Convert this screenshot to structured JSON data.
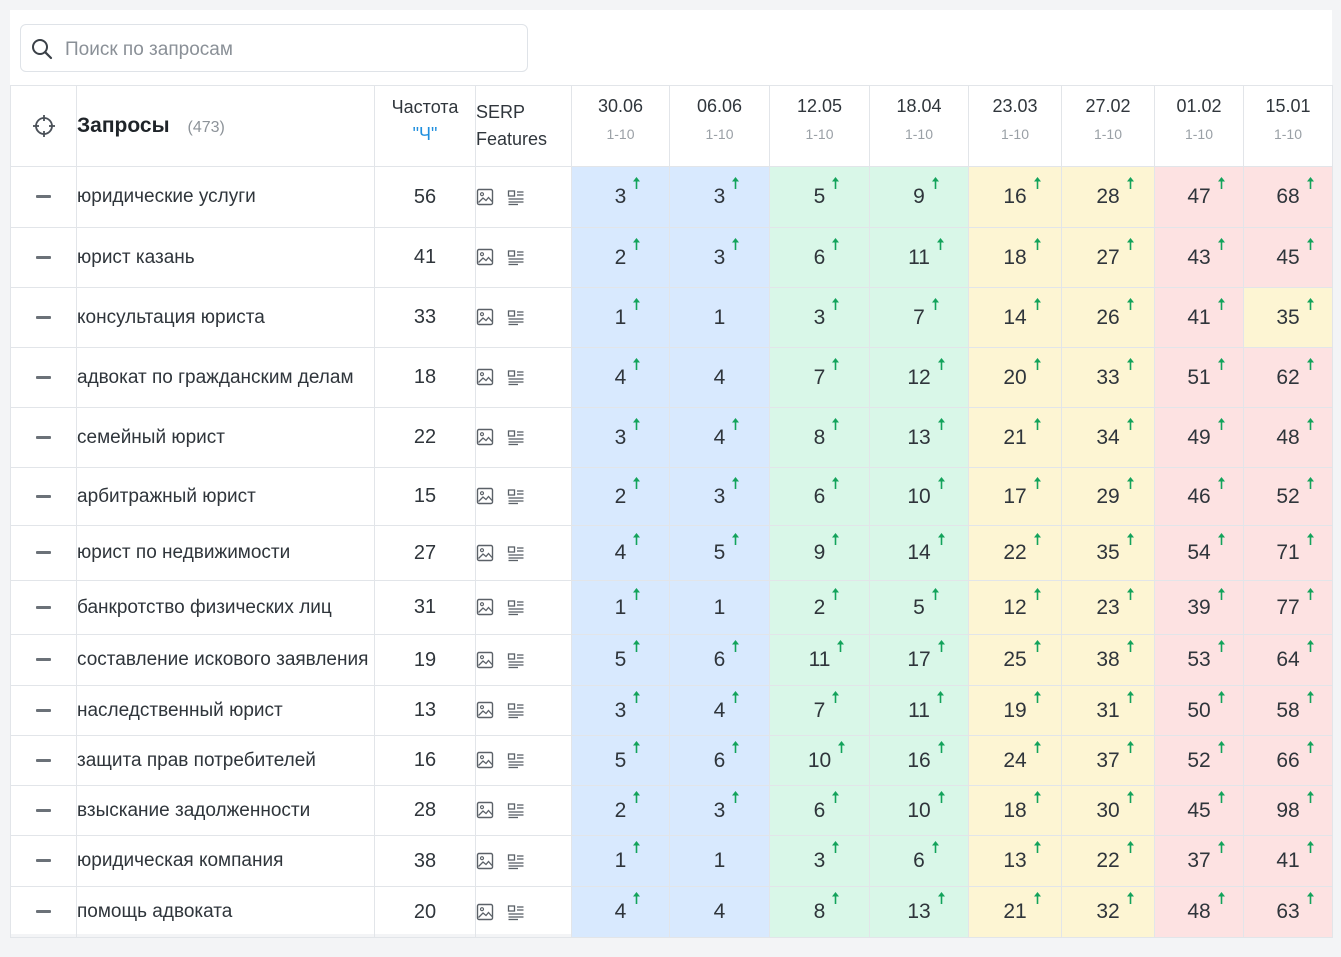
{
  "search": {
    "placeholder": "Поиск по запросам",
    "value": ""
  },
  "header": {
    "queries_title": "Запросы",
    "queries_count": "(473)",
    "freq_title": "Частота",
    "freq_sub": "\"Ч\"",
    "serp_line1": "SERP",
    "serp_line2": "Features"
  },
  "dates": [
    {
      "date": "30.06",
      "range": "1-10"
    },
    {
      "date": "06.06",
      "range": "1-10"
    },
    {
      "date": "12.05",
      "range": "1-10"
    },
    {
      "date": "18.04",
      "range": "1-10"
    },
    {
      "date": "23.03",
      "range": "1-10"
    },
    {
      "date": "27.02",
      "range": "1-10"
    },
    {
      "date": "01.02",
      "range": "1-10"
    },
    {
      "date": "15.01",
      "range": "1-10"
    }
  ],
  "colors": {
    "blue": "#d8e9fe",
    "green": "#d9f7e8",
    "yellow": "#fdf5d3",
    "red": "#fde2e2",
    "arrow_up": "#13a35b",
    "link": "#1f8fde"
  },
  "rows": [
    {
      "query": "юридические услуги",
      "freq": "56",
      "pos": [
        {
          "v": "3",
          "up": true,
          "c": "blue"
        },
        {
          "v": "3",
          "up": true,
          "c": "blue"
        },
        {
          "v": "5",
          "up": true,
          "c": "green"
        },
        {
          "v": "9",
          "up": true,
          "c": "green"
        },
        {
          "v": "16",
          "up": true,
          "c": "yellow"
        },
        {
          "v": "28",
          "up": true,
          "c": "yellow"
        },
        {
          "v": "47",
          "up": true,
          "c": "red"
        },
        {
          "v": "68",
          "up": true,
          "c": "red"
        }
      ]
    },
    {
      "query": "юрист казань",
      "freq": "41",
      "pos": [
        {
          "v": "2",
          "up": true,
          "c": "blue"
        },
        {
          "v": "3",
          "up": true,
          "c": "blue"
        },
        {
          "v": "6",
          "up": true,
          "c": "green"
        },
        {
          "v": "11",
          "up": true,
          "c": "green"
        },
        {
          "v": "18",
          "up": true,
          "c": "yellow"
        },
        {
          "v": "27",
          "up": true,
          "c": "yellow"
        },
        {
          "v": "43",
          "up": true,
          "c": "red"
        },
        {
          "v": "45",
          "up": true,
          "c": "red"
        }
      ]
    },
    {
      "query": "консультация юриста",
      "freq": "33",
      "pos": [
        {
          "v": "1",
          "up": true,
          "c": "blue"
        },
        {
          "v": "1",
          "up": false,
          "c": "blue"
        },
        {
          "v": "3",
          "up": true,
          "c": "green"
        },
        {
          "v": "7",
          "up": true,
          "c": "green"
        },
        {
          "v": "14",
          "up": true,
          "c": "yellow"
        },
        {
          "v": "26",
          "up": true,
          "c": "yellow"
        },
        {
          "v": "41",
          "up": true,
          "c": "red"
        },
        {
          "v": "35",
          "up": true,
          "c": "yellow"
        }
      ]
    },
    {
      "query": "адвокат по гражданским делам",
      "freq": "18",
      "pos": [
        {
          "v": "4",
          "up": true,
          "c": "blue"
        },
        {
          "v": "4",
          "up": false,
          "c": "blue"
        },
        {
          "v": "7",
          "up": true,
          "c": "green"
        },
        {
          "v": "12",
          "up": true,
          "c": "green"
        },
        {
          "v": "20",
          "up": true,
          "c": "yellow"
        },
        {
          "v": "33",
          "up": true,
          "c": "yellow"
        },
        {
          "v": "51",
          "up": true,
          "c": "red"
        },
        {
          "v": "62",
          "up": true,
          "c": "red"
        }
      ]
    },
    {
      "query": "семейный юрист",
      "freq": "22",
      "pos": [
        {
          "v": "3",
          "up": true,
          "c": "blue"
        },
        {
          "v": "4",
          "up": true,
          "c": "blue"
        },
        {
          "v": "8",
          "up": true,
          "c": "green"
        },
        {
          "v": "13",
          "up": true,
          "c": "green"
        },
        {
          "v": "21",
          "up": true,
          "c": "yellow"
        },
        {
          "v": "34",
          "up": true,
          "c": "yellow"
        },
        {
          "v": "49",
          "up": true,
          "c": "red"
        },
        {
          "v": "48",
          "up": true,
          "c": "red"
        }
      ]
    },
    {
      "query": "арбитражный юрист",
      "freq": "15",
      "pos": [
        {
          "v": "2",
          "up": true,
          "c": "blue"
        },
        {
          "v": "3",
          "up": true,
          "c": "blue"
        },
        {
          "v": "6",
          "up": true,
          "c": "green"
        },
        {
          "v": "10",
          "up": true,
          "c": "green"
        },
        {
          "v": "17",
          "up": true,
          "c": "yellow"
        },
        {
          "v": "29",
          "up": true,
          "c": "yellow"
        },
        {
          "v": "46",
          "up": true,
          "c": "red"
        },
        {
          "v": "52",
          "up": true,
          "c": "red"
        }
      ]
    },
    {
      "query": "юрист по недвижимости",
      "freq": "27",
      "pos": [
        {
          "v": "4",
          "up": true,
          "c": "blue"
        },
        {
          "v": "5",
          "up": true,
          "c": "blue"
        },
        {
          "v": "9",
          "up": true,
          "c": "green"
        },
        {
          "v": "14",
          "up": true,
          "c": "green"
        },
        {
          "v": "22",
          "up": true,
          "c": "yellow"
        },
        {
          "v": "35",
          "up": true,
          "c": "yellow"
        },
        {
          "v": "54",
          "up": true,
          "c": "red"
        },
        {
          "v": "71",
          "up": true,
          "c": "red"
        }
      ]
    },
    {
      "query": "банкротство физических лиц",
      "freq": "31",
      "pos": [
        {
          "v": "1",
          "up": true,
          "c": "blue"
        },
        {
          "v": "1",
          "up": false,
          "c": "blue"
        },
        {
          "v": "2",
          "up": true,
          "c": "green"
        },
        {
          "v": "5",
          "up": true,
          "c": "green"
        },
        {
          "v": "12",
          "up": true,
          "c": "yellow"
        },
        {
          "v": "23",
          "up": true,
          "c": "yellow"
        },
        {
          "v": "39",
          "up": true,
          "c": "red"
        },
        {
          "v": "77",
          "up": true,
          "c": "red"
        }
      ]
    },
    {
      "query": "составление искового заявления",
      "freq": "19",
      "pos": [
        {
          "v": "5",
          "up": true,
          "c": "blue"
        },
        {
          "v": "6",
          "up": true,
          "c": "blue"
        },
        {
          "v": "11",
          "up": true,
          "c": "green"
        },
        {
          "v": "17",
          "up": true,
          "c": "green"
        },
        {
          "v": "25",
          "up": true,
          "c": "yellow"
        },
        {
          "v": "38",
          "up": true,
          "c": "yellow"
        },
        {
          "v": "53",
          "up": true,
          "c": "red"
        },
        {
          "v": "64",
          "up": true,
          "c": "red"
        }
      ]
    },
    {
      "query": "наследственный юрист",
      "freq": "13",
      "pos": [
        {
          "v": "3",
          "up": true,
          "c": "blue"
        },
        {
          "v": "4",
          "up": true,
          "c": "blue"
        },
        {
          "v": "7",
          "up": true,
          "c": "green"
        },
        {
          "v": "11",
          "up": true,
          "c": "green"
        },
        {
          "v": "19",
          "up": true,
          "c": "yellow"
        },
        {
          "v": "31",
          "up": true,
          "c": "yellow"
        },
        {
          "v": "50",
          "up": true,
          "c": "red"
        },
        {
          "v": "58",
          "up": true,
          "c": "red"
        }
      ]
    },
    {
      "query": "защита прав потребителей",
      "freq": "16",
      "pos": [
        {
          "v": "5",
          "up": true,
          "c": "blue"
        },
        {
          "v": "6",
          "up": true,
          "c": "blue"
        },
        {
          "v": "10",
          "up": true,
          "c": "green"
        },
        {
          "v": "16",
          "up": true,
          "c": "green"
        },
        {
          "v": "24",
          "up": true,
          "c": "yellow"
        },
        {
          "v": "37",
          "up": true,
          "c": "yellow"
        },
        {
          "v": "52",
          "up": true,
          "c": "red"
        },
        {
          "v": "66",
          "up": true,
          "c": "red"
        }
      ]
    },
    {
      "query": "взыскание задолженности",
      "freq": "28",
      "pos": [
        {
          "v": "2",
          "up": true,
          "c": "blue"
        },
        {
          "v": "3",
          "up": true,
          "c": "blue"
        },
        {
          "v": "6",
          "up": true,
          "c": "green"
        },
        {
          "v": "10",
          "up": true,
          "c": "green"
        },
        {
          "v": "18",
          "up": true,
          "c": "yellow"
        },
        {
          "v": "30",
          "up": true,
          "c": "yellow"
        },
        {
          "v": "45",
          "up": true,
          "c": "red"
        },
        {
          "v": "98",
          "up": true,
          "c": "red"
        }
      ]
    },
    {
      "query": "юридическая компания",
      "freq": "38",
      "pos": [
        {
          "v": "1",
          "up": true,
          "c": "blue"
        },
        {
          "v": "1",
          "up": false,
          "c": "blue"
        },
        {
          "v": "3",
          "up": true,
          "c": "green"
        },
        {
          "v": "6",
          "up": true,
          "c": "green"
        },
        {
          "v": "13",
          "up": true,
          "c": "yellow"
        },
        {
          "v": "22",
          "up": true,
          "c": "yellow"
        },
        {
          "v": "37",
          "up": true,
          "c": "red"
        },
        {
          "v": "41",
          "up": true,
          "c": "red"
        }
      ]
    },
    {
      "query": "помощь адвоката",
      "freq": "20",
      "pos": [
        {
          "v": "4",
          "up": true,
          "c": "blue"
        },
        {
          "v": "4",
          "up": false,
          "c": "blue"
        },
        {
          "v": "8",
          "up": true,
          "c": "green"
        },
        {
          "v": "13",
          "up": true,
          "c": "green"
        },
        {
          "v": "21",
          "up": true,
          "c": "yellow"
        },
        {
          "v": "32",
          "up": true,
          "c": "yellow"
        },
        {
          "v": "48",
          "up": true,
          "c": "red"
        },
        {
          "v": "63",
          "up": true,
          "c": "red"
        }
      ]
    }
  ]
}
